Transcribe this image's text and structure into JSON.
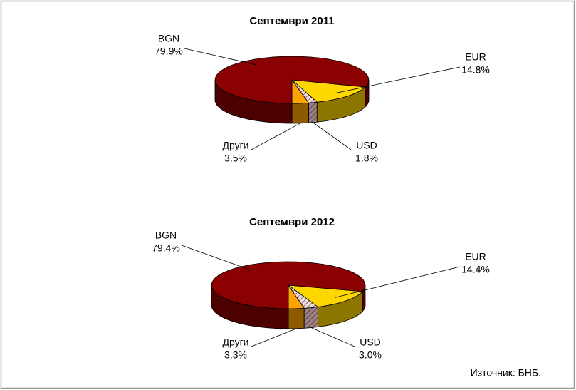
{
  "chart_data": [
    {
      "type": "pie",
      "title": "Септември 2011",
      "categories": [
        "BGN",
        "EUR",
        "USD",
        "Други"
      ],
      "values": [
        79.9,
        14.8,
        1.8,
        3.5
      ],
      "value_labels": [
        "79.9%",
        "14.8%",
        "1.8%",
        "3.5%"
      ],
      "colors": [
        "#8b0000",
        "#ffd700",
        "#f0c8c8",
        "#ffa500"
      ]
    },
    {
      "type": "pie",
      "title": "Септември 2012",
      "categories": [
        "BGN",
        "EUR",
        "USD",
        "Други"
      ],
      "values": [
        79.4,
        14.4,
        3.0,
        3.3
      ],
      "value_labels": [
        "79.4%",
        "14.4%",
        "3.0%",
        "3.3%"
      ],
      "colors": [
        "#8b0000",
        "#ffd700",
        "#f0c8c8",
        "#ffa500"
      ]
    }
  ],
  "source": "Източник: БНБ."
}
